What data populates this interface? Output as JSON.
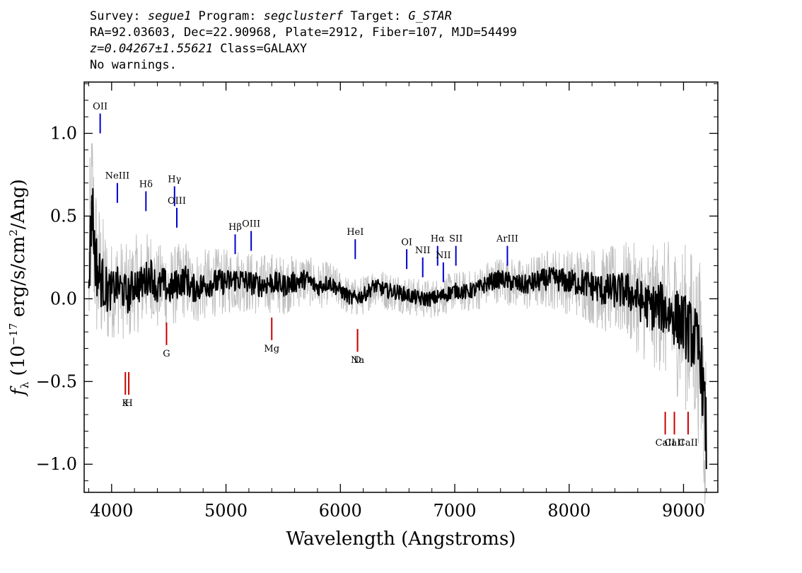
{
  "header": {
    "line1": {
      "survey_label": "Survey: ",
      "survey": "segue1",
      "program_label": " Program: ",
      "program": "segclusterf",
      "target_label": " Target: ",
      "target": "G_STAR"
    },
    "line2": "RA=92.03603, Dec=22.90968, Plate=2912, Fiber=107, MJD=54499",
    "line3": {
      "z": "z=0.04267±1.55621",
      "class": " Class=GALAXY"
    },
    "line4": "No warnings."
  },
  "chart_data": {
    "type": "line",
    "xlabel": "Wavelength (Angstroms)",
    "ylabel": "f_λ (10^-17 erg/s/cm²/Ang)",
    "xlim": [
      3760,
      9300
    ],
    "ylim": [
      -1.17,
      1.31
    ],
    "xticks": [
      4000,
      5000,
      6000,
      7000,
      8000,
      9000
    ],
    "yticks": [
      -1.0,
      -0.5,
      0.0,
      0.5,
      1.0
    ],
    "ytick_labels": [
      "−1.0",
      "−0.5",
      "0.0",
      "0.5",
      "1.0"
    ],
    "grid": false,
    "series": [
      {
        "role": "spectrum",
        "color": "#000000",
        "x": [
          3800,
          3830,
          3850,
          3880,
          3920,
          3960,
          4000,
          4050,
          4100,
          4150,
          4200,
          4250,
          4300,
          4350,
          4400,
          4450,
          4500,
          4550,
          4600,
          4650,
          4700,
          4800,
          4900,
          5000,
          5100,
          5200,
          5300,
          5400,
          5500,
          5600,
          5700,
          5800,
          5900,
          6000,
          6100,
          6200,
          6300,
          6400,
          6500,
          6600,
          6700,
          6800,
          6900,
          7000,
          7100,
          7200,
          7300,
          7400,
          7500,
          7600,
          7700,
          7800,
          7900,
          8000,
          8100,
          8200,
          8300,
          8400,
          8500,
          8600,
          8700,
          8800,
          8900,
          9000,
          9100,
          9150,
          9200
        ],
        "y": [
          0.1,
          0.6,
          0.3,
          0.15,
          0.1,
          0.05,
          0.05,
          0.08,
          0.05,
          0.02,
          0.1,
          0.08,
          0.12,
          0.15,
          0.05,
          0.1,
          0.05,
          0.08,
          0.1,
          0.12,
          0.06,
          0.08,
          0.1,
          0.1,
          0.12,
          0.1,
          0.08,
          0.1,
          0.08,
          0.1,
          0.12,
          0.07,
          0.1,
          0.05,
          0.0,
          0.02,
          0.08,
          0.05,
          0.04,
          0.02,
          0.0,
          0.0,
          0.02,
          0.05,
          0.04,
          0.06,
          0.1,
          0.12,
          0.1,
          0.08,
          0.1,
          0.12,
          0.12,
          0.1,
          0.1,
          0.08,
          0.05,
          0.05,
          0.05,
          0.0,
          -0.05,
          -0.05,
          -0.1,
          -0.15,
          -0.25,
          -0.35,
          -0.85
        ]
      },
      {
        "role": "error",
        "color": "#c0c0c0",
        "x": [
          3800,
          3900,
          4000,
          4200,
          4500,
          5000,
          5500,
          6000,
          6500,
          7000,
          7500,
          8000,
          8500,
          8800,
          9000,
          9100,
          9200
        ],
        "y": [
          0.6,
          0.45,
          0.3,
          0.3,
          0.25,
          0.2,
          0.18,
          0.12,
          0.12,
          0.12,
          0.15,
          0.2,
          0.3,
          0.4,
          0.5,
          0.55,
          0.6
        ]
      }
    ],
    "emission_lines": [
      {
        "label": "OII",
        "x": 3900,
        "y": 1.0,
        "color": "#0000cc"
      },
      {
        "label": "NeIII",
        "x": 4050,
        "y": 0.58,
        "color": "#0000cc"
      },
      {
        "label": "Hδ",
        "x": 4300,
        "y": 0.53,
        "color": "#0000cc"
      },
      {
        "label": "Hγ",
        "x": 4550,
        "y": 0.56,
        "color": "#0000cc"
      },
      {
        "label": "OIII",
        "x": 4570,
        "y": 0.43,
        "color": "#0000cc"
      },
      {
        "label": "Hβ",
        "x": 5080,
        "y": 0.27,
        "color": "#0000cc"
      },
      {
        "label": "OIII",
        "x": 5220,
        "y": 0.29,
        "color": "#0000cc"
      },
      {
        "label": "HeI",
        "x": 6130,
        "y": 0.24,
        "color": "#0000cc"
      },
      {
        "label": "OI",
        "x": 6580,
        "y": 0.18,
        "color": "#0000cc"
      },
      {
        "label": "NII",
        "x": 6720,
        "y": 0.13,
        "color": "#0000cc"
      },
      {
        "label": "Hα",
        "x": 6850,
        "y": 0.2,
        "color": "#0000cc"
      },
      {
        "label": "NII",
        "x": 6900,
        "y": 0.1,
        "color": "#0000cc"
      },
      {
        "label": "SII",
        "x": 7010,
        "y": 0.2,
        "color": "#0000cc"
      },
      {
        "label": "ArIII",
        "x": 7460,
        "y": 0.2,
        "color": "#0000cc"
      }
    ],
    "absorption_lines": [
      {
        "label": "K",
        "x": 4120,
        "y": -0.58,
        "color": "#cc0000"
      },
      {
        "label": "H",
        "x": 4150,
        "y": -0.58,
        "color": "#cc0000"
      },
      {
        "label": "G",
        "x": 4480,
        "y": -0.28,
        "color": "#cc0000"
      },
      {
        "label": "Mg",
        "x": 5400,
        "y": -0.25,
        "color": "#cc0000"
      },
      {
        "label": "Na",
        "x": 6150,
        "y": -0.32,
        "color": "#cc0000"
      },
      {
        "label": "D",
        "x": 6150,
        "y": -0.32,
        "color": "#cc0000"
      },
      {
        "label": "CaII",
        "x": 8840,
        "y": -0.82,
        "color": "#cc0000"
      },
      {
        "label": "CaII",
        "x": 8920,
        "y": -0.82,
        "color": "#cc0000"
      },
      {
        "label": "CaII",
        "x": 9040,
        "y": -0.82,
        "color": "#cc0000"
      }
    ]
  }
}
